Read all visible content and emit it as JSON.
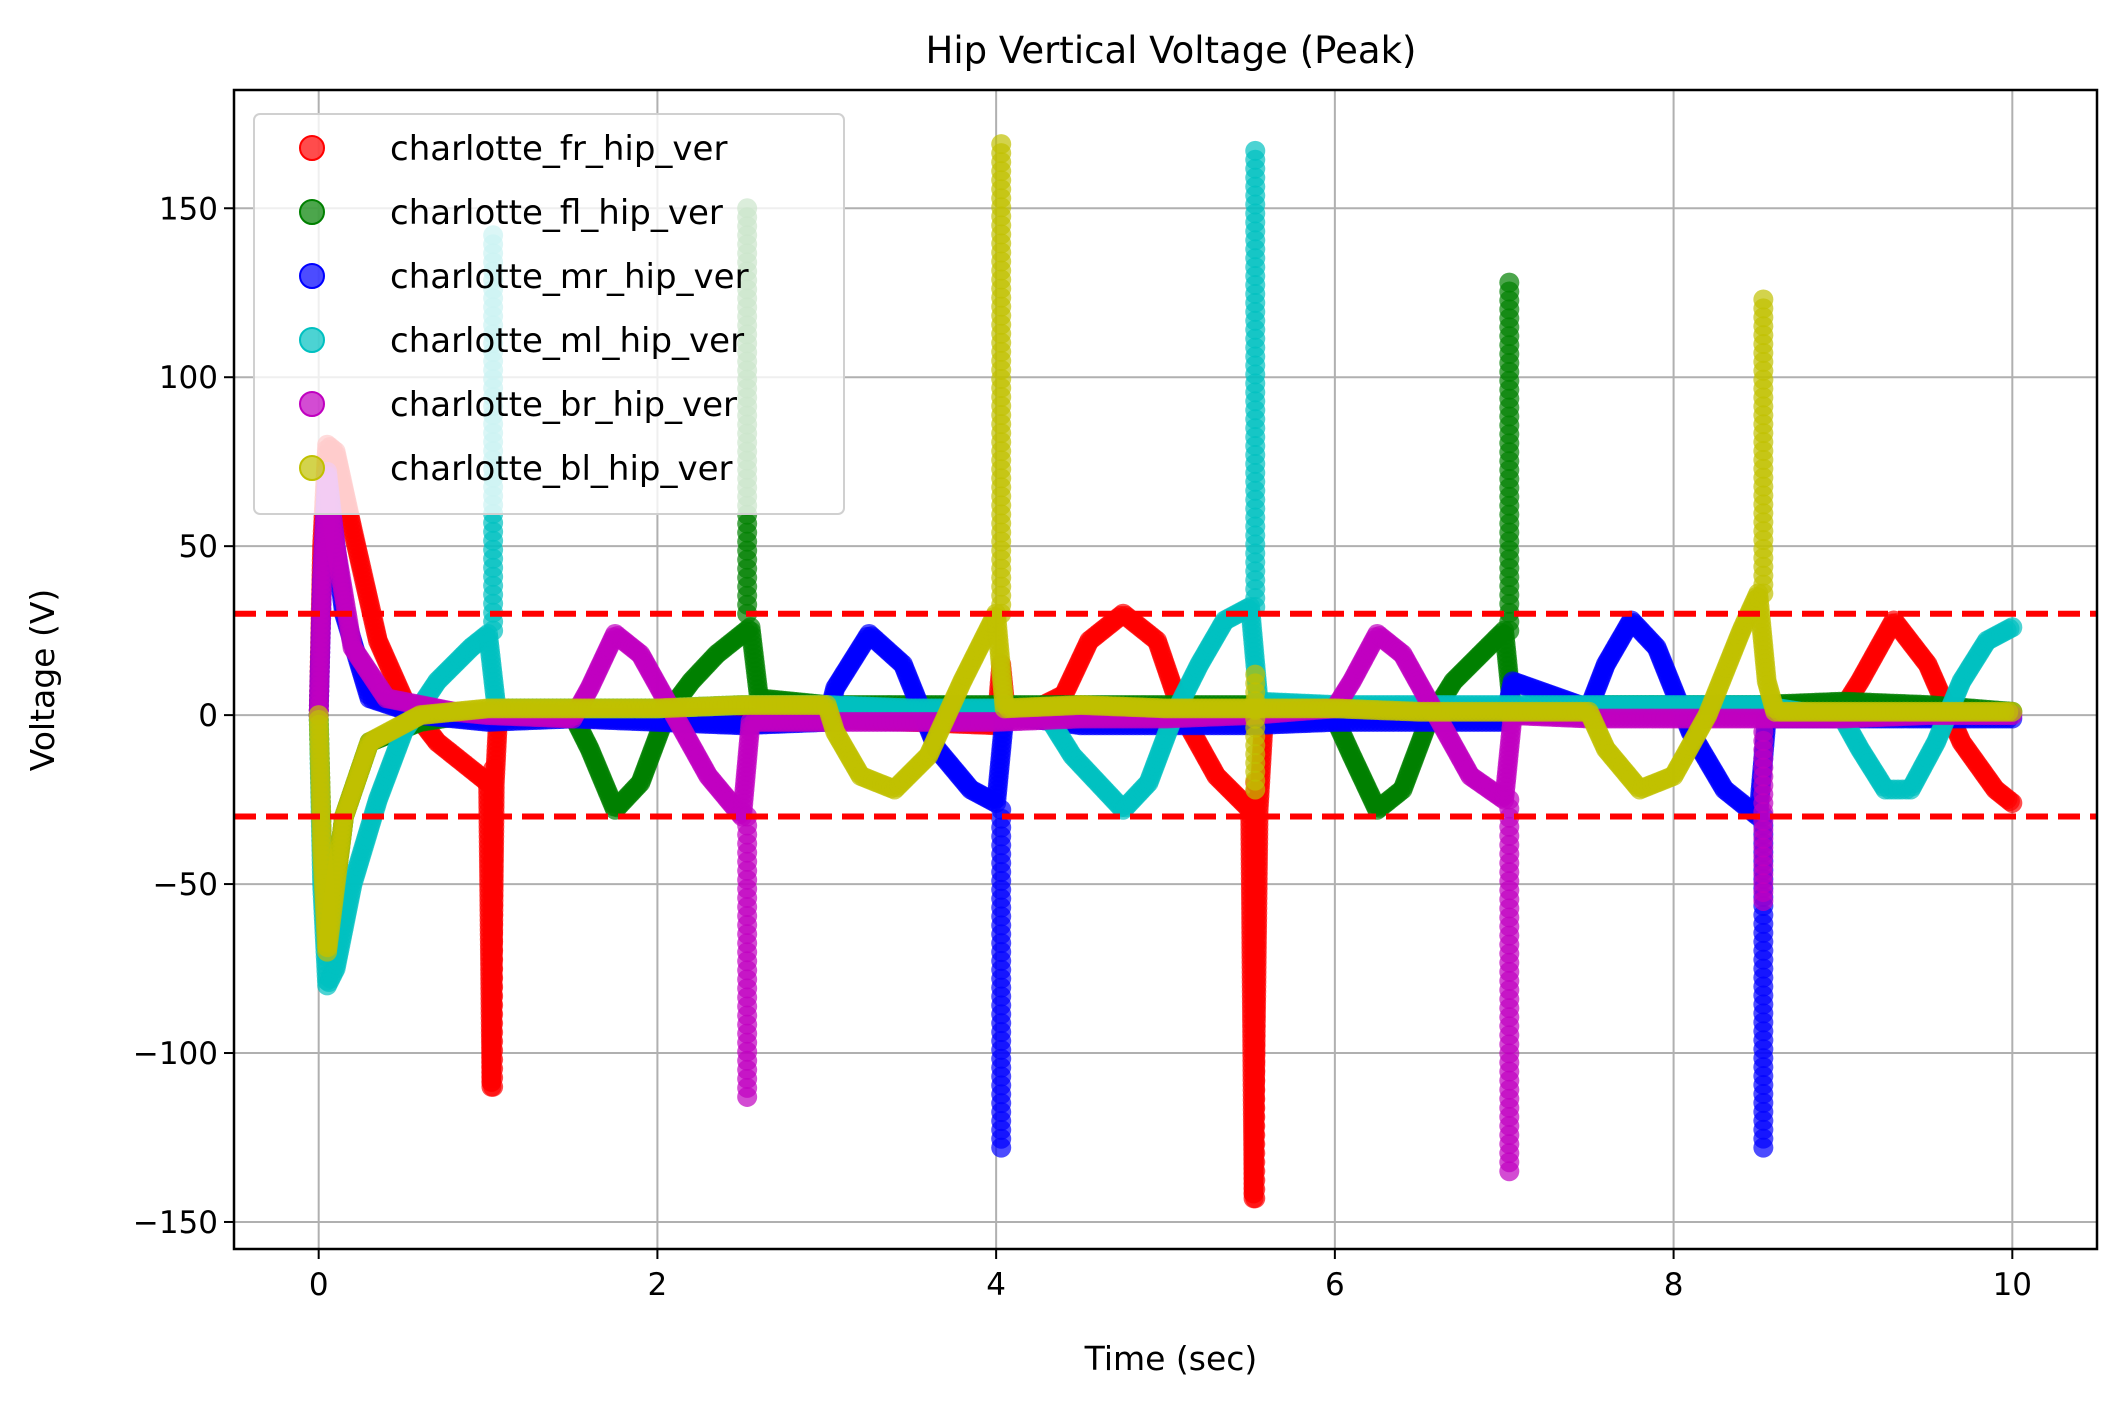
{
  "chart_data": {
    "type": "scatter",
    "title": "Hip Vertical Voltage (Peak)",
    "xlabel": "Time (sec)",
    "ylabel": "Voltage (V)",
    "xlim": [
      -0.5,
      10.5
    ],
    "ylim": [
      -158,
      185
    ],
    "xticks": [
      0,
      2,
      4,
      6,
      8,
      10
    ],
    "xtick_labels": [
      "0",
      "2",
      "4",
      "6",
      "8",
      "10"
    ],
    "yticks": [
      -150,
      -100,
      -50,
      0,
      50,
      100,
      150
    ],
    "ytick_labels": [
      "−150",
      "−100",
      "−50",
      "0",
      "50",
      "100",
      "150"
    ],
    "grid": true,
    "legend_position": "top-left",
    "reference_lines": [
      {
        "y": 30,
        "color": "#ff0000",
        "style": "dashed"
      },
      {
        "y": -30,
        "color": "#ff0000",
        "style": "dashed"
      }
    ],
    "series": [
      {
        "name": "charlotte_fr_hip_ver",
        "color": "#ff0000",
        "points": [
          [
            0,
            0
          ],
          [
            0.02,
            50
          ],
          [
            0.05,
            80
          ],
          [
            0.1,
            78
          ],
          [
            0.2,
            55
          ],
          [
            0.35,
            22
          ],
          [
            0.5,
            5
          ],
          [
            0.7,
            -8
          ],
          [
            0.9,
            -16
          ],
          [
            1.0,
            -20
          ],
          [
            1.02,
            -110
          ],
          [
            1.04,
            -20
          ],
          [
            1.06,
            0
          ],
          [
            1.5,
            -1
          ],
          [
            2.0,
            -1
          ],
          [
            2.5,
            -1
          ],
          [
            3.0,
            -1
          ],
          [
            3.5,
            -2
          ],
          [
            4.0,
            -3
          ],
          [
            4.03,
            15
          ],
          [
            4.06,
            0
          ],
          [
            4.2,
            1
          ],
          [
            4.4,
            6
          ],
          [
            4.55,
            22
          ],
          [
            4.75,
            30
          ],
          [
            4.95,
            22
          ],
          [
            5.1,
            0
          ],
          [
            5.3,
            -18
          ],
          [
            5.5,
            -28
          ],
          [
            5.52,
            -143
          ],
          [
            5.55,
            -28
          ],
          [
            5.58,
            -2
          ],
          [
            6.0,
            0
          ],
          [
            6.5,
            0
          ],
          [
            7.0,
            0
          ],
          [
            7.5,
            1
          ],
          [
            8.0,
            1
          ],
          [
            8.5,
            2
          ],
          [
            9.0,
            2
          ],
          [
            9.1,
            10
          ],
          [
            9.3,
            28
          ],
          [
            9.5,
            15
          ],
          [
            9.7,
            -8
          ],
          [
            9.9,
            -22
          ],
          [
            10.0,
            -26
          ]
        ],
        "spikes": [
          [
            1.03,
            -110,
            -16
          ],
          [
            5.53,
            -143,
            -20
          ]
        ]
      },
      {
        "name": "charlotte_fl_hip_ver",
        "color": "#008000",
        "points": [
          [
            0,
            0
          ],
          [
            0.02,
            -40
          ],
          [
            0.05,
            -70
          ],
          [
            0.15,
            -30
          ],
          [
            0.3,
            -8
          ],
          [
            0.6,
            -2
          ],
          [
            1.0,
            1
          ],
          [
            1.5,
            0
          ],
          [
            1.6,
            -10
          ],
          [
            1.75,
            -28
          ],
          [
            1.9,
            -20
          ],
          [
            2.05,
            0
          ],
          [
            2.2,
            10
          ],
          [
            2.35,
            18
          ],
          [
            2.55,
            26
          ],
          [
            2.6,
            5
          ],
          [
            3.0,
            3
          ],
          [
            3.5,
            3
          ],
          [
            4.0,
            3
          ],
          [
            4.5,
            3
          ],
          [
            5.0,
            3
          ],
          [
            5.5,
            3
          ],
          [
            6.0,
            -1
          ],
          [
            6.1,
            -12
          ],
          [
            6.25,
            -28
          ],
          [
            6.4,
            -22
          ],
          [
            6.55,
            -2
          ],
          [
            6.7,
            10
          ],
          [
            6.9,
            20
          ],
          [
            7.0,
            25
          ],
          [
            7.05,
            0
          ],
          [
            7.5,
            3
          ],
          [
            8.0,
            3
          ],
          [
            8.5,
            3
          ],
          [
            9.0,
            4
          ],
          [
            9.5,
            3
          ],
          [
            10.0,
            1
          ]
        ],
        "spikes": [
          [
            2.53,
            30,
            150
          ],
          [
            7.03,
            25,
            128
          ]
        ]
      },
      {
        "name": "charlotte_mr_hip_ver",
        "color": "#0000ff",
        "points": [
          [
            0,
            0
          ],
          [
            0.02,
            40
          ],
          [
            0.05,
            70
          ],
          [
            0.15,
            30
          ],
          [
            0.3,
            5
          ],
          [
            0.6,
            0
          ],
          [
            1.0,
            -2
          ],
          [
            1.5,
            -1
          ],
          [
            2.0,
            -2
          ],
          [
            2.5,
            -3
          ],
          [
            3.0,
            -2
          ],
          [
            3.05,
            8
          ],
          [
            3.25,
            24
          ],
          [
            3.45,
            15
          ],
          [
            3.65,
            -10
          ],
          [
            3.85,
            -22
          ],
          [
            4.0,
            -26
          ],
          [
            4.05,
            0
          ],
          [
            4.5,
            -3
          ],
          [
            5.0,
            -3
          ],
          [
            5.5,
            -3
          ],
          [
            6.0,
            -2
          ],
          [
            6.5,
            -2
          ],
          [
            7.0,
            -2
          ],
          [
            7.05,
            10
          ],
          [
            7.5,
            2
          ],
          [
            7.6,
            15
          ],
          [
            7.75,
            28
          ],
          [
            7.9,
            20
          ],
          [
            8.1,
            -5
          ],
          [
            8.3,
            -22
          ],
          [
            8.5,
            -30
          ],
          [
            8.55,
            -1
          ],
          [
            9.0,
            -1
          ],
          [
            9.5,
            -1
          ],
          [
            10.0,
            -1
          ]
        ],
        "spikes": [
          [
            4.03,
            -128,
            -28
          ],
          [
            8.53,
            -128,
            -30
          ]
        ]
      },
      {
        "name": "charlotte_ml_hip_ver",
        "color": "#00c0c0",
        "points": [
          [
            0,
            0
          ],
          [
            0.02,
            -50
          ],
          [
            0.05,
            -80
          ],
          [
            0.1,
            -75
          ],
          [
            0.2,
            -50
          ],
          [
            0.35,
            -25
          ],
          [
            0.5,
            -5
          ],
          [
            0.7,
            10
          ],
          [
            0.9,
            20
          ],
          [
            1.0,
            24
          ],
          [
            1.05,
            2
          ],
          [
            1.5,
            2
          ],
          [
            2.0,
            2
          ],
          [
            2.5,
            3
          ],
          [
            3.0,
            3
          ],
          [
            3.5,
            2
          ],
          [
            4.0,
            2
          ],
          [
            4.05,
            1
          ],
          [
            4.3,
            0
          ],
          [
            4.45,
            -12
          ],
          [
            4.6,
            -20
          ],
          [
            4.75,
            -28
          ],
          [
            4.9,
            -20
          ],
          [
            5.05,
            0
          ],
          [
            5.2,
            15
          ],
          [
            5.35,
            28
          ],
          [
            5.5,
            32
          ],
          [
            5.55,
            4
          ],
          [
            6.0,
            3
          ],
          [
            6.5,
            3
          ],
          [
            7.0,
            3
          ],
          [
            7.5,
            3
          ],
          [
            8.0,
            3
          ],
          [
            8.5,
            3
          ],
          [
            9.0,
            -1
          ],
          [
            9.1,
            -10
          ],
          [
            9.25,
            -22
          ],
          [
            9.4,
            -22
          ],
          [
            9.55,
            -8
          ],
          [
            9.7,
            10
          ],
          [
            9.85,
            22
          ],
          [
            10.0,
            26
          ]
        ],
        "spikes": [
          [
            1.03,
            25,
            142
          ],
          [
            5.53,
            32,
            167
          ]
        ]
      },
      {
        "name": "charlotte_br_hip_ver",
        "color": "#c000c0",
        "points": [
          [
            0,
            0
          ],
          [
            0.02,
            40
          ],
          [
            0.05,
            72
          ],
          [
            0.1,
            50
          ],
          [
            0.2,
            20
          ],
          [
            0.4,
            5
          ],
          [
            0.8,
            1
          ],
          [
            1.0,
            0
          ],
          [
            1.5,
            -1
          ],
          [
            1.6,
            8
          ],
          [
            1.75,
            24
          ],
          [
            1.9,
            18
          ],
          [
            2.1,
            0
          ],
          [
            2.3,
            -18
          ],
          [
            2.5,
            -30
          ],
          [
            2.55,
            -2
          ],
          [
            3.0,
            -2
          ],
          [
            3.5,
            -2
          ],
          [
            4.0,
            -2
          ],
          [
            4.5,
            -1
          ],
          [
            5.0,
            -1
          ],
          [
            5.5,
            0
          ],
          [
            6.0,
            2
          ],
          [
            6.1,
            10
          ],
          [
            6.25,
            24
          ],
          [
            6.4,
            18
          ],
          [
            6.6,
            0
          ],
          [
            6.8,
            -18
          ],
          [
            7.0,
            -25
          ],
          [
            7.05,
            0
          ],
          [
            7.5,
            -1
          ],
          [
            8.0,
            -1
          ],
          [
            8.5,
            -1
          ],
          [
            9.0,
            -1
          ],
          [
            9.5,
            0
          ],
          [
            10.0,
            0
          ]
        ],
        "spikes": [
          [
            2.53,
            -113,
            -30
          ],
          [
            7.03,
            -135,
            -25
          ],
          [
            8.53,
            -55,
            -5
          ]
        ]
      },
      {
        "name": "charlotte_bl_hip_ver",
        "color": "#c0c000",
        "points": [
          [
            0,
            0
          ],
          [
            0.02,
            -40
          ],
          [
            0.05,
            -70
          ],
          [
            0.15,
            -30
          ],
          [
            0.3,
            -8
          ],
          [
            0.6,
            0
          ],
          [
            1.0,
            2
          ],
          [
            1.5,
            2
          ],
          [
            2.0,
            2
          ],
          [
            2.5,
            3
          ],
          [
            3.0,
            3
          ],
          [
            3.05,
            -5
          ],
          [
            3.2,
            -18
          ],
          [
            3.4,
            -22
          ],
          [
            3.6,
            -12
          ],
          [
            3.8,
            10
          ],
          [
            4.0,
            30
          ],
          [
            4.05,
            2
          ],
          [
            4.5,
            3
          ],
          [
            5.0,
            2
          ],
          [
            5.5,
            2
          ],
          [
            6.0,
            2
          ],
          [
            6.5,
            1
          ],
          [
            7.0,
            1
          ],
          [
            7.5,
            1
          ],
          [
            7.6,
            -10
          ],
          [
            7.8,
            -22
          ],
          [
            8.0,
            -18
          ],
          [
            8.2,
            0
          ],
          [
            8.4,
            25
          ],
          [
            8.5,
            36
          ],
          [
            8.55,
            10
          ],
          [
            8.6,
            1
          ],
          [
            9.0,
            1
          ],
          [
            9.5,
            1
          ],
          [
            10.0,
            1
          ]
        ],
        "spikes": [
          [
            4.03,
            30,
            169
          ],
          [
            8.53,
            36,
            123
          ],
          [
            5.53,
            -22,
            12
          ]
        ]
      }
    ]
  }
}
